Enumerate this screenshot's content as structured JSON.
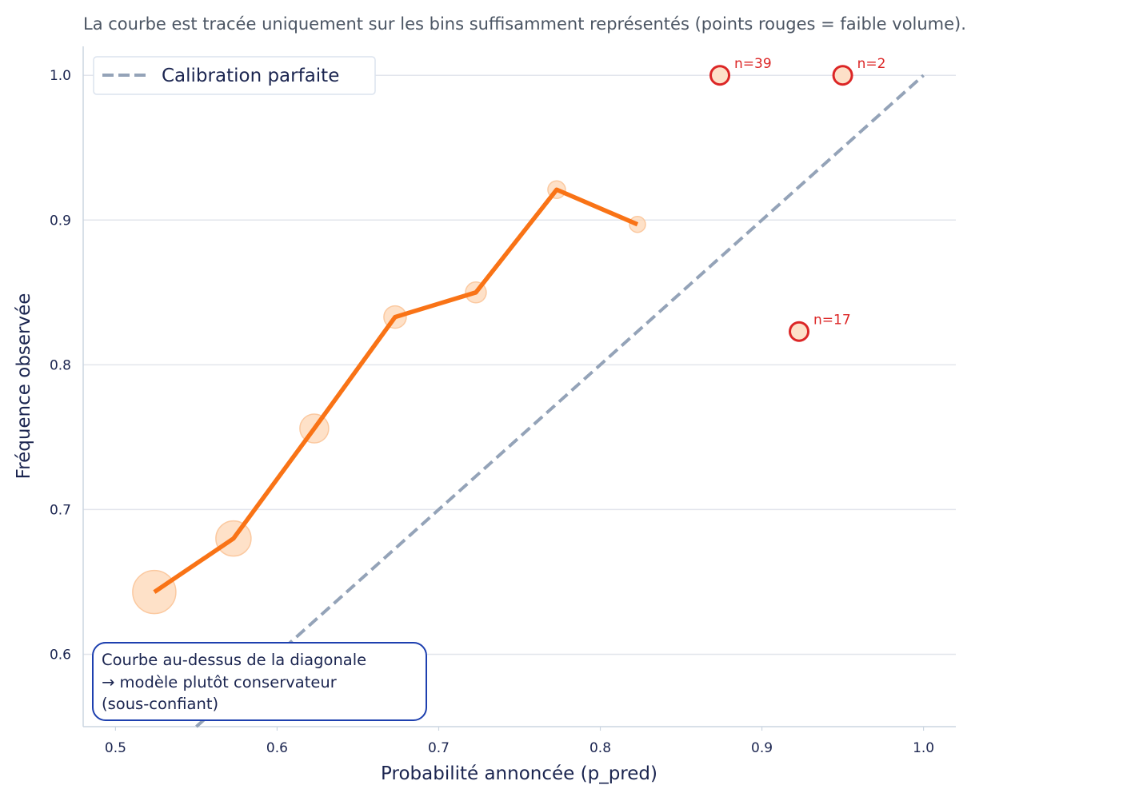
{
  "chart_data": {
    "type": "line",
    "title": "La courbe est tracée uniquement sur les bins suffisamment représentés (points rouges = faible volume).",
    "xlabel": "Probabilité annoncée (p_pred)",
    "ylabel": "Fréquence observée",
    "xlim": [
      0.48,
      1.02
    ],
    "ylim": [
      0.55,
      1.02
    ],
    "xticks": [
      "0.5",
      "0.6",
      "0.7",
      "0.8",
      "0.9",
      "1.0"
    ],
    "yticks": [
      "0.6",
      "0.7",
      "0.8",
      "0.9",
      "1.0"
    ],
    "grid": "horizontal",
    "legend": {
      "placement": "top-left",
      "entries": [
        "Calibration parfaite"
      ]
    },
    "series": [
      {
        "name": "Calibration parfaite",
        "style": "dashed",
        "color": "#94a3b8",
        "x": [
          0.55,
          1.0
        ],
        "y": [
          0.55,
          1.0
        ]
      },
      {
        "style": "line+bubbles",
        "color": "#f97316",
        "bubble_color": "#fed7b5",
        "x": [
          0.524,
          0.573,
          0.623,
          0.673,
          0.723,
          0.773,
          0.823
        ],
        "y": [
          0.643,
          0.68,
          0.756,
          0.833,
          0.85,
          0.921,
          0.897
        ]
      },
      {
        "style": "low-volume points",
        "color": "#dc2626",
        "x": [
          0.874,
          0.95,
          0.923
        ],
        "y": [
          1.0,
          1.0,
          0.823
        ],
        "labels": [
          "n=39",
          "n=2",
          "n=17"
        ]
      }
    ],
    "annotation_box": {
      "lines": [
        "Courbe au-dessus de la diagonale",
        "→ modèle plutôt conservateur",
        "(sous-confiant)"
      ],
      "border_color": "#1e40af"
    }
  }
}
